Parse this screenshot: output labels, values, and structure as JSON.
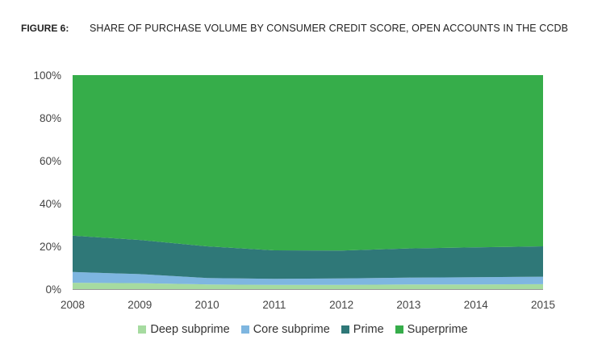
{
  "figure_label": "FIGURE 6:",
  "figure_title": "SHARE OF PURCHASE VOLUME BY CONSUMER CREDIT SCORE, OPEN ACCOUNTS IN THE CCDB",
  "chart_data": {
    "type": "area",
    "stacked": true,
    "x": [
      2008,
      2009,
      2010,
      2011,
      2012,
      2013,
      2014,
      2015
    ],
    "xticks": [
      "2008",
      "2009",
      "2010",
      "2011",
      "2012",
      "2013",
      "2014",
      "2015"
    ],
    "yticks": [
      "0%",
      "20%",
      "40%",
      "60%",
      "80%",
      "100%"
    ],
    "ylim": [
      0,
      100
    ],
    "grid": false,
    "legend_position": "bottom",
    "series": [
      {
        "name": "Deep subprime",
        "values": [
          3.0,
          2.8,
          2.2,
          2.0,
          2.0,
          2.2,
          2.2,
          2.3
        ],
        "color": "#a6dba0"
      },
      {
        "name": "Core subprime",
        "values": [
          5.0,
          4.2,
          3.0,
          2.8,
          3.0,
          3.2,
          3.4,
          3.5
        ],
        "color": "#7eb6e0"
      },
      {
        "name": "Prime",
        "values": [
          17.0,
          16.0,
          14.8,
          13.3,
          13.0,
          13.6,
          13.9,
          14.2
        ],
        "color": "#2f7878"
      },
      {
        "name": "Superprime",
        "values": [
          75.0,
          77.0,
          80.0,
          81.9,
          82.0,
          81.0,
          80.5,
          80.0
        ],
        "color": "#36ad4a"
      }
    ]
  }
}
